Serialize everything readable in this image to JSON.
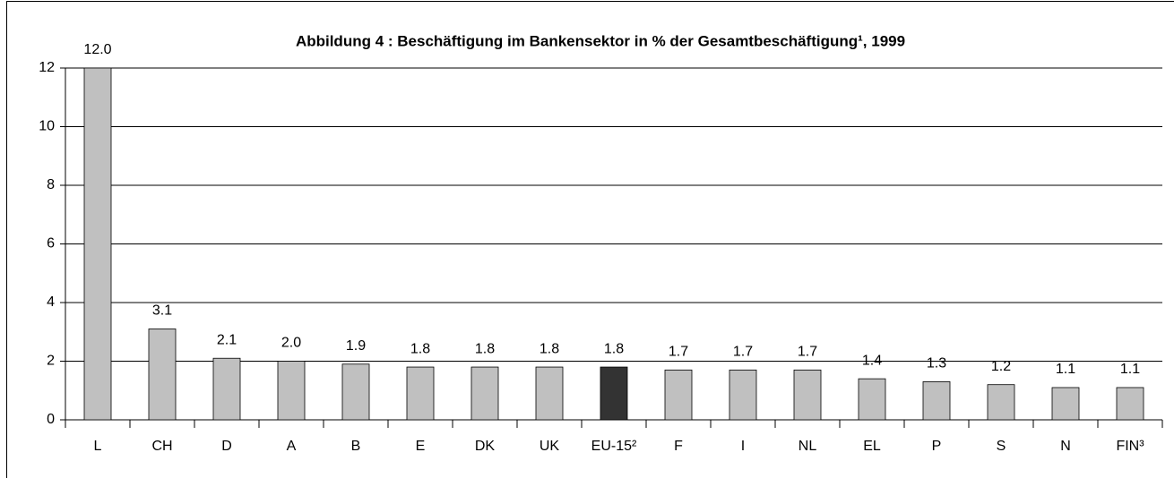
{
  "chart_data": {
    "type": "bar",
    "title": "Abbildung 4 : Beschäftigung im Bankensektor in % der Gesamtbeschäftigung¹, 1999",
    "categories": [
      "L",
      "CH",
      "D",
      "A",
      "B",
      "E",
      "DK",
      "UK",
      "EU-15²",
      "F",
      "I",
      "NL",
      "EL",
      "P",
      "S",
      "N",
      "FIN³"
    ],
    "values": [
      12.0,
      3.1,
      2.1,
      2.0,
      1.9,
      1.8,
      1.8,
      1.8,
      1.8,
      1.7,
      1.7,
      1.7,
      1.4,
      1.3,
      1.2,
      1.1,
      1.1
    ],
    "value_labels": [
      "12.0",
      "3.1",
      "2.1",
      "2.0",
      "1.9",
      "1.8",
      "1.8",
      "1.8",
      "1.8",
      "1.7",
      "1.7",
      "1.7",
      "1.4",
      "1.3",
      "1.2",
      "1.1",
      "1.1"
    ],
    "colors": [
      "#c0c0c0",
      "#c0c0c0",
      "#c0c0c0",
      "#c0c0c0",
      "#c0c0c0",
      "#c0c0c0",
      "#c0c0c0",
      "#c0c0c0",
      "#333333",
      "#c0c0c0",
      "#c0c0c0",
      "#c0c0c0",
      "#c0c0c0",
      "#c0c0c0",
      "#c0c0c0",
      "#c0c0c0",
      "#c0c0c0"
    ],
    "ylim": [
      0,
      12
    ],
    "yticks": [
      0,
      2,
      4,
      6,
      8,
      10,
      12
    ],
    "grid": true
  }
}
